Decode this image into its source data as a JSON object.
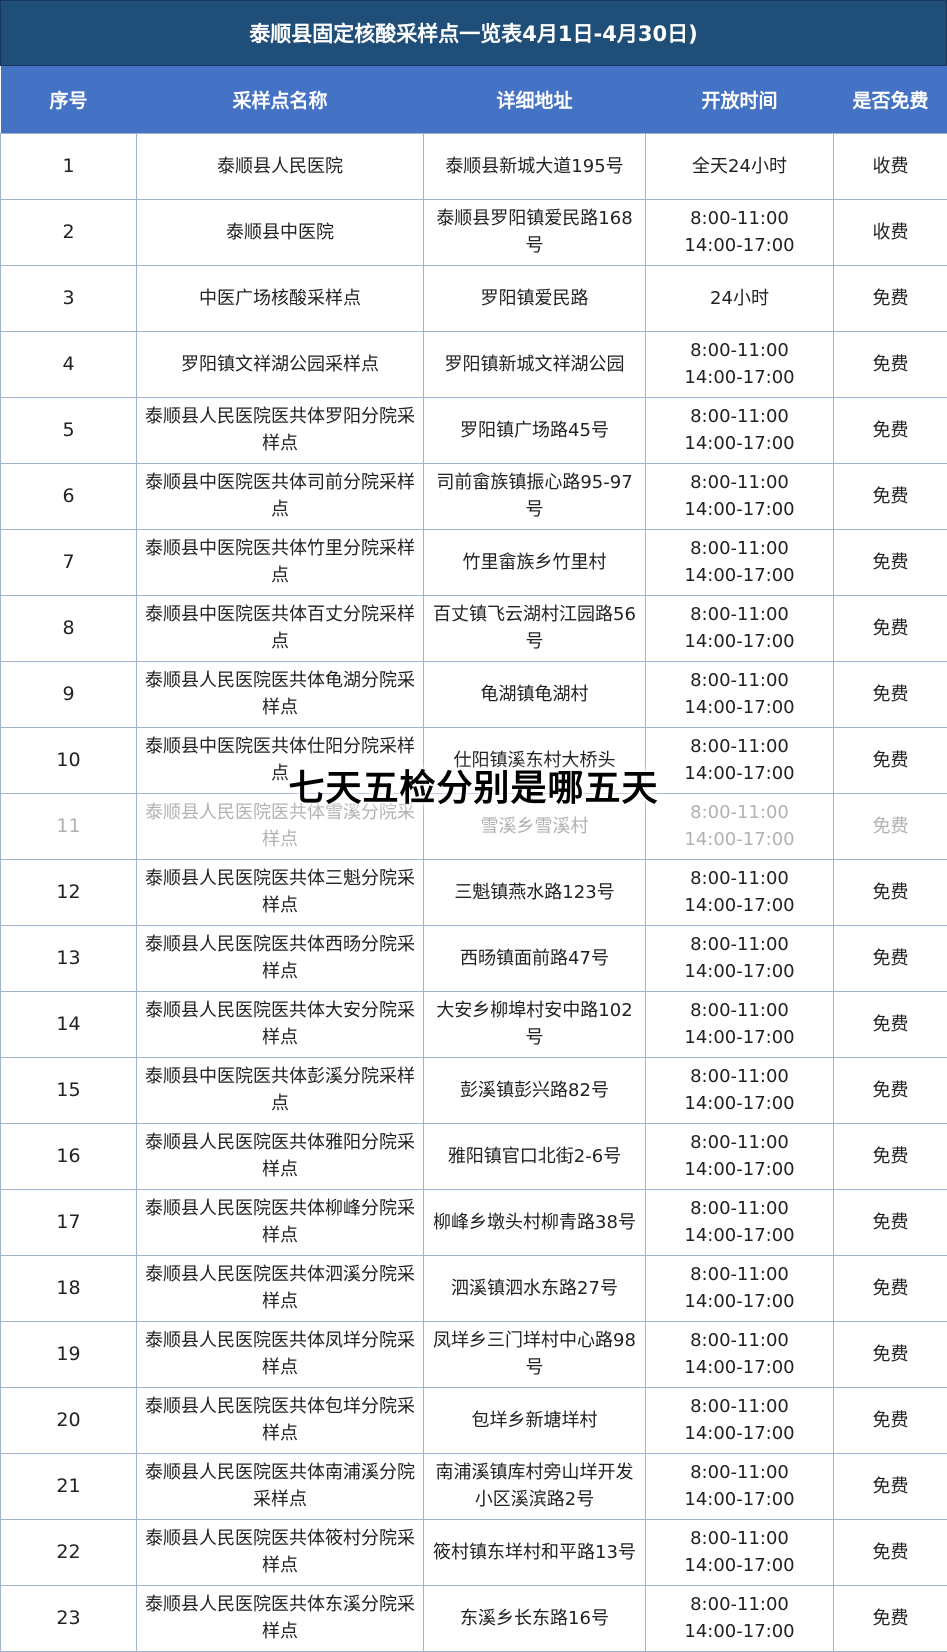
{
  "title": "泰顺县固定核酸采样点一览表4月1日-4月30日)",
  "headers": [
    "序号",
    "采样点名称",
    "详细地址",
    "开放时间",
    "是否免费"
  ],
  "rows": [
    [
      "1",
      "泰顺县人民医院",
      "泰顺县新城大道195号",
      "全天24小时",
      "收费"
    ],
    [
      "2",
      "泰顺县中医院",
      "泰顺县罗阳镇爱民路168号",
      "8:00-11:00 14:00-17:00",
      "收费"
    ],
    [
      "3",
      "中医广场核酸采样点",
      "罗阳镇爱民路",
      "24小时",
      "免费"
    ],
    [
      "4",
      "罗阳镇文祥湖公园采样点",
      "罗阳镇新城文祥湖公园",
      "8:00-11:00 14:00-17:00",
      "免费"
    ],
    [
      "5",
      "泰顺县人民医院医共体罗阳分院采样点",
      "罗阳镇广场路45号",
      "8:00-11:00 14:00-17:00",
      "免费"
    ],
    [
      "6",
      "泰顺县中医院医共体司前分院采样点",
      "司前畲族镇振心路95-97号",
      "8:00-11:00 14:00-17:00",
      "免费"
    ],
    [
      "7",
      "泰顺县中医院医共体竹里分院采样点",
      "竹里畲族乡竹里村",
      "8:00-11:00 14:00-17:00",
      "免费"
    ],
    [
      "8",
      "泰顺县中医院医共体百丈分院采样点",
      "百丈镇飞云湖村江园路56号",
      "8:00-11:00 14:00-17:00",
      "免费"
    ],
    [
      "9",
      "泰顺县人民医院医共体龟湖分院采样点",
      "龟湖镇龟湖村",
      "8:00-11:00 14:00-17:00",
      "免费"
    ],
    [
      "10",
      "泰顺县中医院医共体仕阳分院采样点",
      "仕阳镇溪东村大桥头",
      "8:00-11:00 14:00-17:00",
      "免费"
    ],
    [
      "11",
      "泰顺县人民医院医共体雪溪分院采样点",
      "雪溪乡雪溪村",
      "8:00-11:00 14:00-17:00",
      "免费"
    ],
    [
      "12",
      "泰顺县人民医院医共体三魁分院采样点",
      "三魁镇燕水路123号",
      "8:00-11:00 14:00-17:00",
      "免费"
    ],
    [
      "13",
      "泰顺县人民医院医共体西旸分院采样点",
      "西旸镇面前路47号",
      "8:00-11:00 14:00-17:00",
      "免费"
    ],
    [
      "14",
      "泰顺县人民医院医共体大安分院采样点",
      "大安乡柳埠村安中路102号",
      "8:00-11:00 14:00-17:00",
      "免费"
    ],
    [
      "15",
      "泰顺县中医院医共体彭溪分院采样点",
      "彭溪镇彭兴路82号",
      "8:00-11:00 14:00-17:00",
      "免费"
    ],
    [
      "16",
      "泰顺县人民医院医共体雅阳分院采样点",
      "雅阳镇官口北街2-6号",
      "8:00-11:00 14:00-17:00",
      "免费"
    ],
    [
      "17",
      "泰顺县人民医院医共体柳峰分院采样点",
      "柳峰乡墩头村柳青路38号",
      "8:00-11:00 14:00-17:00",
      "免费"
    ],
    [
      "18",
      "泰顺县人民医院医共体泗溪分院采样点",
      "泗溪镇泗水东路27号",
      "8:00-11:00 14:00-17:00",
      "免费"
    ],
    [
      "19",
      "泰顺县人民医院医共体凤垟分院采样点",
      "凤垟乡三门垟村中心路98号",
      "8:00-11:00 14:00-17:00",
      "免费"
    ],
    [
      "20",
      "泰顺县人民医院医共体包垟分院采样点",
      "包垟乡新塘垟村",
      "8:00-11:00 14:00-17:00",
      "免费"
    ],
    [
      "21",
      "泰顺县人民医院医共体南浦溪分院采样点",
      "南浦溪镇库村旁山垟开发小区溪滨路2号",
      "8:00-11:00 14:00-17:00",
      "免费"
    ],
    [
      "22",
      "泰顺县人民医院医共体筱村分院采样点",
      "筱村镇东垟村和平路13号",
      "8:00-11:00 14:00-17:00",
      "免费"
    ],
    [
      "23",
      "泰顺县人民医院医共体东溪分院采样点",
      "东溪乡长东路16号",
      "8:00-11:00 14:00-17:00",
      "免费"
    ]
  ],
  "overlay_text": "七天五检分别是哪五天"
}
